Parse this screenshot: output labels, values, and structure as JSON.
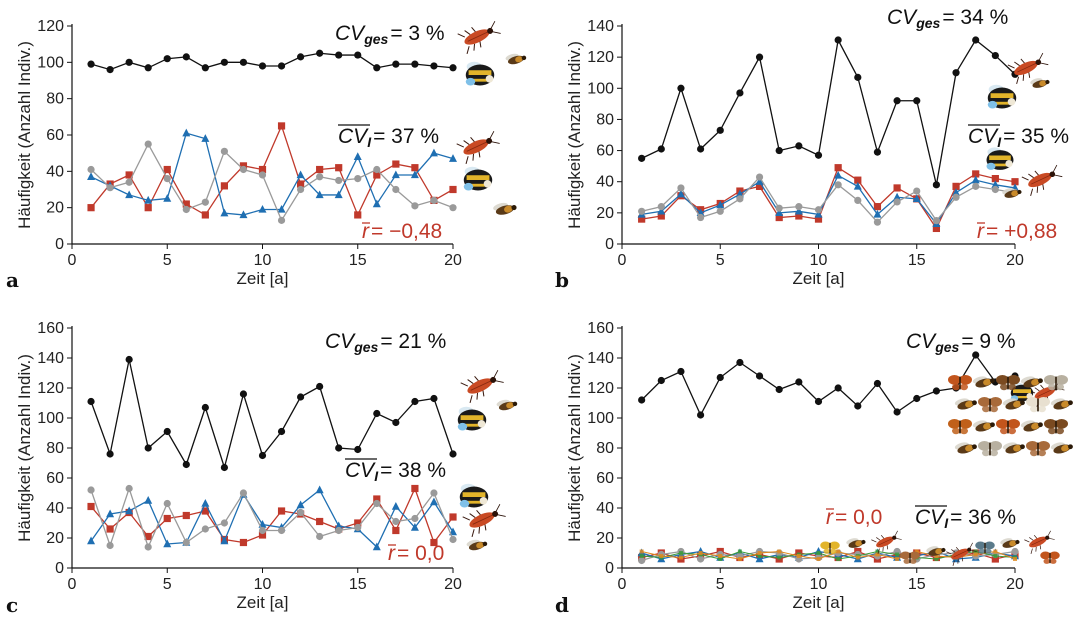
{
  "colors": {
    "black": "#111111",
    "red": "#c0392b",
    "blue": "#1f6fb2",
    "gray": "#9a9a9a"
  },
  "chart_data": [
    {
      "panel_label": "a",
      "type": "line",
      "xlabel": "Zeit [a]",
      "ylabel": "Häufigkeit (Anzahl Indiv.)",
      "xlim": [
        0,
        20
      ],
      "ylim": [
        0,
        120
      ],
      "xticks": [
        0,
        5,
        10,
        15,
        20
      ],
      "yticks": [
        0,
        20,
        40,
        60,
        80,
        100,
        120
      ],
      "cv_ges_label": "CV",
      "cv_ges_sub": "ges",
      "cv_ges_value": "= 3 %",
      "cv_i_label": "CV",
      "cv_i_sub": "I",
      "cv_i_value": "= 37 %",
      "r_label": "r",
      "r_value": "= −0,48",
      "series": [
        {
          "color": "black",
          "marker": "circle",
          "x": [
            1,
            2,
            3,
            4,
            5,
            6,
            7,
            8,
            9,
            10,
            11,
            12,
            13,
            14,
            15,
            16,
            17,
            18,
            19,
            20
          ],
          "values": [
            99,
            96,
            100,
            97,
            102,
            103,
            97,
            100,
            100,
            98,
            98,
            103,
            105,
            104,
            104,
            97,
            99,
            99,
            98,
            97
          ]
        },
        {
          "color": "red",
          "marker": "square",
          "x": [
            1,
            2,
            3,
            4,
            5,
            6,
            7,
            8,
            9,
            10,
            11,
            12,
            13,
            14,
            15,
            16,
            17,
            18,
            19,
            20
          ],
          "values": [
            20,
            33,
            38,
            20,
            41,
            22,
            16,
            32,
            43,
            41,
            65,
            33,
            41,
            42,
            16,
            38,
            44,
            42,
            24,
            30
          ]
        },
        {
          "color": "blue",
          "marker": "triangle",
          "x": [
            1,
            2,
            3,
            4,
            5,
            6,
            7,
            8,
            9,
            10,
            11,
            12,
            13,
            14,
            15,
            16,
            17,
            18,
            19,
            20
          ],
          "values": [
            37,
            32,
            27,
            24,
            25,
            61,
            58,
            17,
            16,
            19,
            19,
            38,
            27,
            27,
            48,
            22,
            38,
            38,
            50,
            47
          ]
        },
        {
          "color": "gray",
          "marker": "circle",
          "x": [
            1,
            2,
            3,
            4,
            5,
            6,
            7,
            8,
            9,
            10,
            11,
            12,
            13,
            14,
            15,
            16,
            17,
            18,
            19,
            20
          ],
          "values": [
            41,
            31,
            34,
            55,
            36,
            19,
            23,
            51,
            41,
            38,
            13,
            30,
            37,
            35,
            36,
            41,
            30,
            21,
            24,
            20
          ]
        }
      ]
    },
    {
      "panel_label": "b",
      "type": "line",
      "xlabel": "Zeit [a]",
      "ylabel": "Häufigkeit (Anzahl Indiv.)",
      "xlim": [
        0,
        20
      ],
      "ylim": [
        0,
        140
      ],
      "xticks": [
        0,
        5,
        10,
        15,
        20
      ],
      "yticks": [
        0,
        20,
        40,
        60,
        80,
        100,
        120,
        140
      ],
      "cv_ges_label": "CV",
      "cv_ges_sub": "ges",
      "cv_ges_value": "= 34 %",
      "cv_i_label": "CV",
      "cv_i_sub": "I",
      "cv_i_value": "= 35 %",
      "r_label": "r",
      "r_value": "= +0,88",
      "series": [
        {
          "color": "black",
          "marker": "circle",
          "x": [
            1,
            2,
            3,
            4,
            5,
            6,
            7,
            8,
            9,
            10,
            11,
            12,
            13,
            14,
            15,
            16,
            17,
            18,
            19,
            20
          ],
          "values": [
            55,
            61,
            100,
            61,
            73,
            97,
            120,
            60,
            63,
            57,
            131,
            107,
            59,
            92,
            92,
            38,
            110,
            131,
            121,
            109
          ]
        },
        {
          "color": "red",
          "marker": "square",
          "x": [
            1,
            2,
            3,
            4,
            5,
            6,
            7,
            8,
            9,
            10,
            11,
            12,
            13,
            14,
            15,
            16,
            17,
            18,
            19,
            20
          ],
          "values": [
            16,
            18,
            31,
            22,
            26,
            34,
            37,
            17,
            18,
            16,
            49,
            41,
            24,
            36,
            29,
            10,
            37,
            45,
            42,
            40
          ]
        },
        {
          "color": "blue",
          "marker": "triangle",
          "x": [
            1,
            2,
            3,
            4,
            5,
            6,
            7,
            8,
            9,
            10,
            11,
            12,
            13,
            14,
            15,
            16,
            17,
            18,
            19,
            20
          ],
          "values": [
            19,
            21,
            32,
            20,
            25,
            32,
            40,
            20,
            21,
            19,
            44,
            37,
            19,
            30,
            29,
            13,
            33,
            41,
            38,
            36
          ]
        },
        {
          "color": "gray",
          "marker": "circle",
          "x": [
            1,
            2,
            3,
            4,
            5,
            6,
            7,
            8,
            9,
            10,
            11,
            12,
            13,
            14,
            15,
            16,
            17,
            18,
            19,
            20
          ],
          "values": [
            21,
            24,
            36,
            17,
            21,
            29,
            43,
            23,
            24,
            22,
            38,
            28,
            14,
            27,
            34,
            15,
            30,
            37,
            35,
            33
          ]
        }
      ]
    },
    {
      "panel_label": "c",
      "type": "line",
      "xlabel": "Zeit [a]",
      "ylabel": "Häufigkeit (Anzahl Indiv.)",
      "xlim": [
        0,
        20
      ],
      "ylim": [
        0,
        160
      ],
      "xticks": [
        0,
        5,
        10,
        15,
        20
      ],
      "yticks": [
        0,
        20,
        40,
        60,
        80,
        100,
        120,
        140,
        160
      ],
      "cv_ges_label": "CV",
      "cv_ges_sub": "ges",
      "cv_ges_value": "= 21 %",
      "cv_i_label": "CV",
      "cv_i_sub": "I",
      "cv_i_value": "= 38 %",
      "r_label": "r",
      "r_value": "= 0,0",
      "series": [
        {
          "color": "black",
          "marker": "circle",
          "x": [
            1,
            2,
            3,
            4,
            5,
            6,
            7,
            8,
            9,
            10,
            11,
            12,
            13,
            14,
            15,
            16,
            17,
            18,
            19,
            20
          ],
          "values": [
            111,
            76,
            139,
            80,
            91,
            69,
            107,
            67,
            116,
            75,
            91,
            114,
            121,
            80,
            79,
            103,
            97,
            111,
            113,
            76
          ]
        },
        {
          "color": "red",
          "marker": "square",
          "x": [
            1,
            2,
            3,
            4,
            5,
            6,
            7,
            8,
            9,
            10,
            11,
            12,
            13,
            14,
            15,
            16,
            17,
            18,
            19,
            20
          ],
          "values": [
            41,
            26,
            37,
            21,
            33,
            35,
            38,
            19,
            17,
            22,
            38,
            36,
            31,
            26,
            30,
            46,
            25,
            53,
            17,
            34
          ]
        },
        {
          "color": "blue",
          "marker": "triangle",
          "x": [
            1,
            2,
            3,
            4,
            5,
            6,
            7,
            8,
            9,
            10,
            11,
            12,
            13,
            14,
            15,
            16,
            17,
            18,
            19,
            20
          ],
          "values": [
            18,
            36,
            38,
            45,
            16,
            17,
            43,
            18,
            49,
            29,
            27,
            42,
            52,
            28,
            26,
            14,
            41,
            27,
            44,
            24
          ]
        },
        {
          "color": "gray",
          "marker": "circle",
          "x": [
            1,
            2,
            3,
            4,
            5,
            6,
            7,
            8,
            9,
            10,
            11,
            12,
            13,
            14,
            15,
            16,
            17,
            18,
            19,
            20
          ],
          "values": [
            52,
            15,
            53,
            14,
            43,
            17,
            26,
            30,
            50,
            25,
            25,
            37,
            21,
            25,
            27,
            43,
            31,
            33,
            50,
            19
          ]
        }
      ]
    },
    {
      "panel_label": "d",
      "type": "line",
      "xlabel": "Zeit [a]",
      "ylabel": "Häufigkeit (Anzahl Indiv.)",
      "xlim": [
        0,
        20
      ],
      "ylim": [
        0,
        160
      ],
      "xticks": [
        0,
        5,
        10,
        15,
        20
      ],
      "yticks": [
        0,
        20,
        40,
        60,
        80,
        100,
        120,
        140,
        160
      ],
      "cv_ges_label": "CV",
      "cv_ges_sub": "ges",
      "cv_ges_value": "= 9 %",
      "cv_i_label": "CV",
      "cv_i_sub": "I",
      "cv_i_value": "= 36 %",
      "r_label": "r",
      "r_value": "= 0,0",
      "series": [
        {
          "color": "black",
          "marker": "circle",
          "x": [
            1,
            2,
            3,
            4,
            5,
            6,
            7,
            8,
            9,
            10,
            11,
            12,
            13,
            14,
            15,
            16,
            17,
            18,
            19,
            20
          ],
          "values": [
            112,
            125,
            131,
            102,
            127,
            137,
            128,
            119,
            124,
            111,
            120,
            108,
            123,
            104,
            113,
            118,
            120,
            142,
            124,
            128
          ]
        },
        {
          "color": "red",
          "marker": "square",
          "x": [
            1,
            2,
            3,
            4,
            5,
            6,
            7,
            8,
            9,
            10,
            11,
            12,
            13,
            14,
            15,
            16,
            17,
            18,
            19,
            20
          ],
          "values": [
            7,
            10,
            6,
            8,
            11,
            7,
            9,
            6,
            10,
            8,
            7,
            11,
            6,
            9,
            10,
            7,
            8,
            10,
            6,
            9
          ]
        },
        {
          "color": "blue",
          "marker": "triangle",
          "x": [
            1,
            2,
            3,
            4,
            5,
            6,
            7,
            8,
            9,
            10,
            11,
            12,
            13,
            14,
            15,
            16,
            17,
            18,
            19,
            20
          ],
          "values": [
            10,
            6,
            9,
            11,
            7,
            10,
            6,
            9,
            7,
            11,
            9,
            6,
            10,
            7,
            8,
            11,
            6,
            7,
            10,
            8
          ]
        },
        {
          "color": "gray",
          "marker": "circle",
          "x": [
            1,
            2,
            3,
            4,
            5,
            6,
            7,
            8,
            9,
            10,
            11,
            12,
            13,
            14,
            15,
            16,
            17,
            18,
            19,
            20
          ],
          "values": [
            5,
            9,
            11,
            6,
            9,
            8,
            11,
            10,
            6,
            7,
            10,
            9,
            8,
            11,
            6,
            9,
            10,
            8,
            9,
            11
          ]
        },
        {
          "color": "green",
          "marker": "none",
          "x": [
            1,
            2,
            3,
            4,
            5,
            6,
            7,
            8,
            9,
            10,
            11,
            12,
            13,
            14,
            15,
            16,
            17,
            18,
            19,
            20
          ],
          "values": [
            8,
            7,
            10,
            9,
            6,
            11,
            8,
            7,
            9,
            10,
            6,
            8,
            11,
            9,
            7,
            6,
            9,
            11,
            8,
            7
          ]
        },
        {
          "color": "orange",
          "marker": "none",
          "x": [
            1,
            2,
            3,
            4,
            5,
            6,
            7,
            8,
            9,
            10,
            11,
            12,
            13,
            14,
            15,
            16,
            17,
            18,
            19,
            20
          ],
          "values": [
            11,
            8,
            7,
            10,
            8,
            6,
            10,
            11,
            8,
            6,
            11,
            7,
            9,
            6,
            11,
            8,
            7,
            9,
            11,
            6
          ]
        }
      ]
    }
  ]
}
